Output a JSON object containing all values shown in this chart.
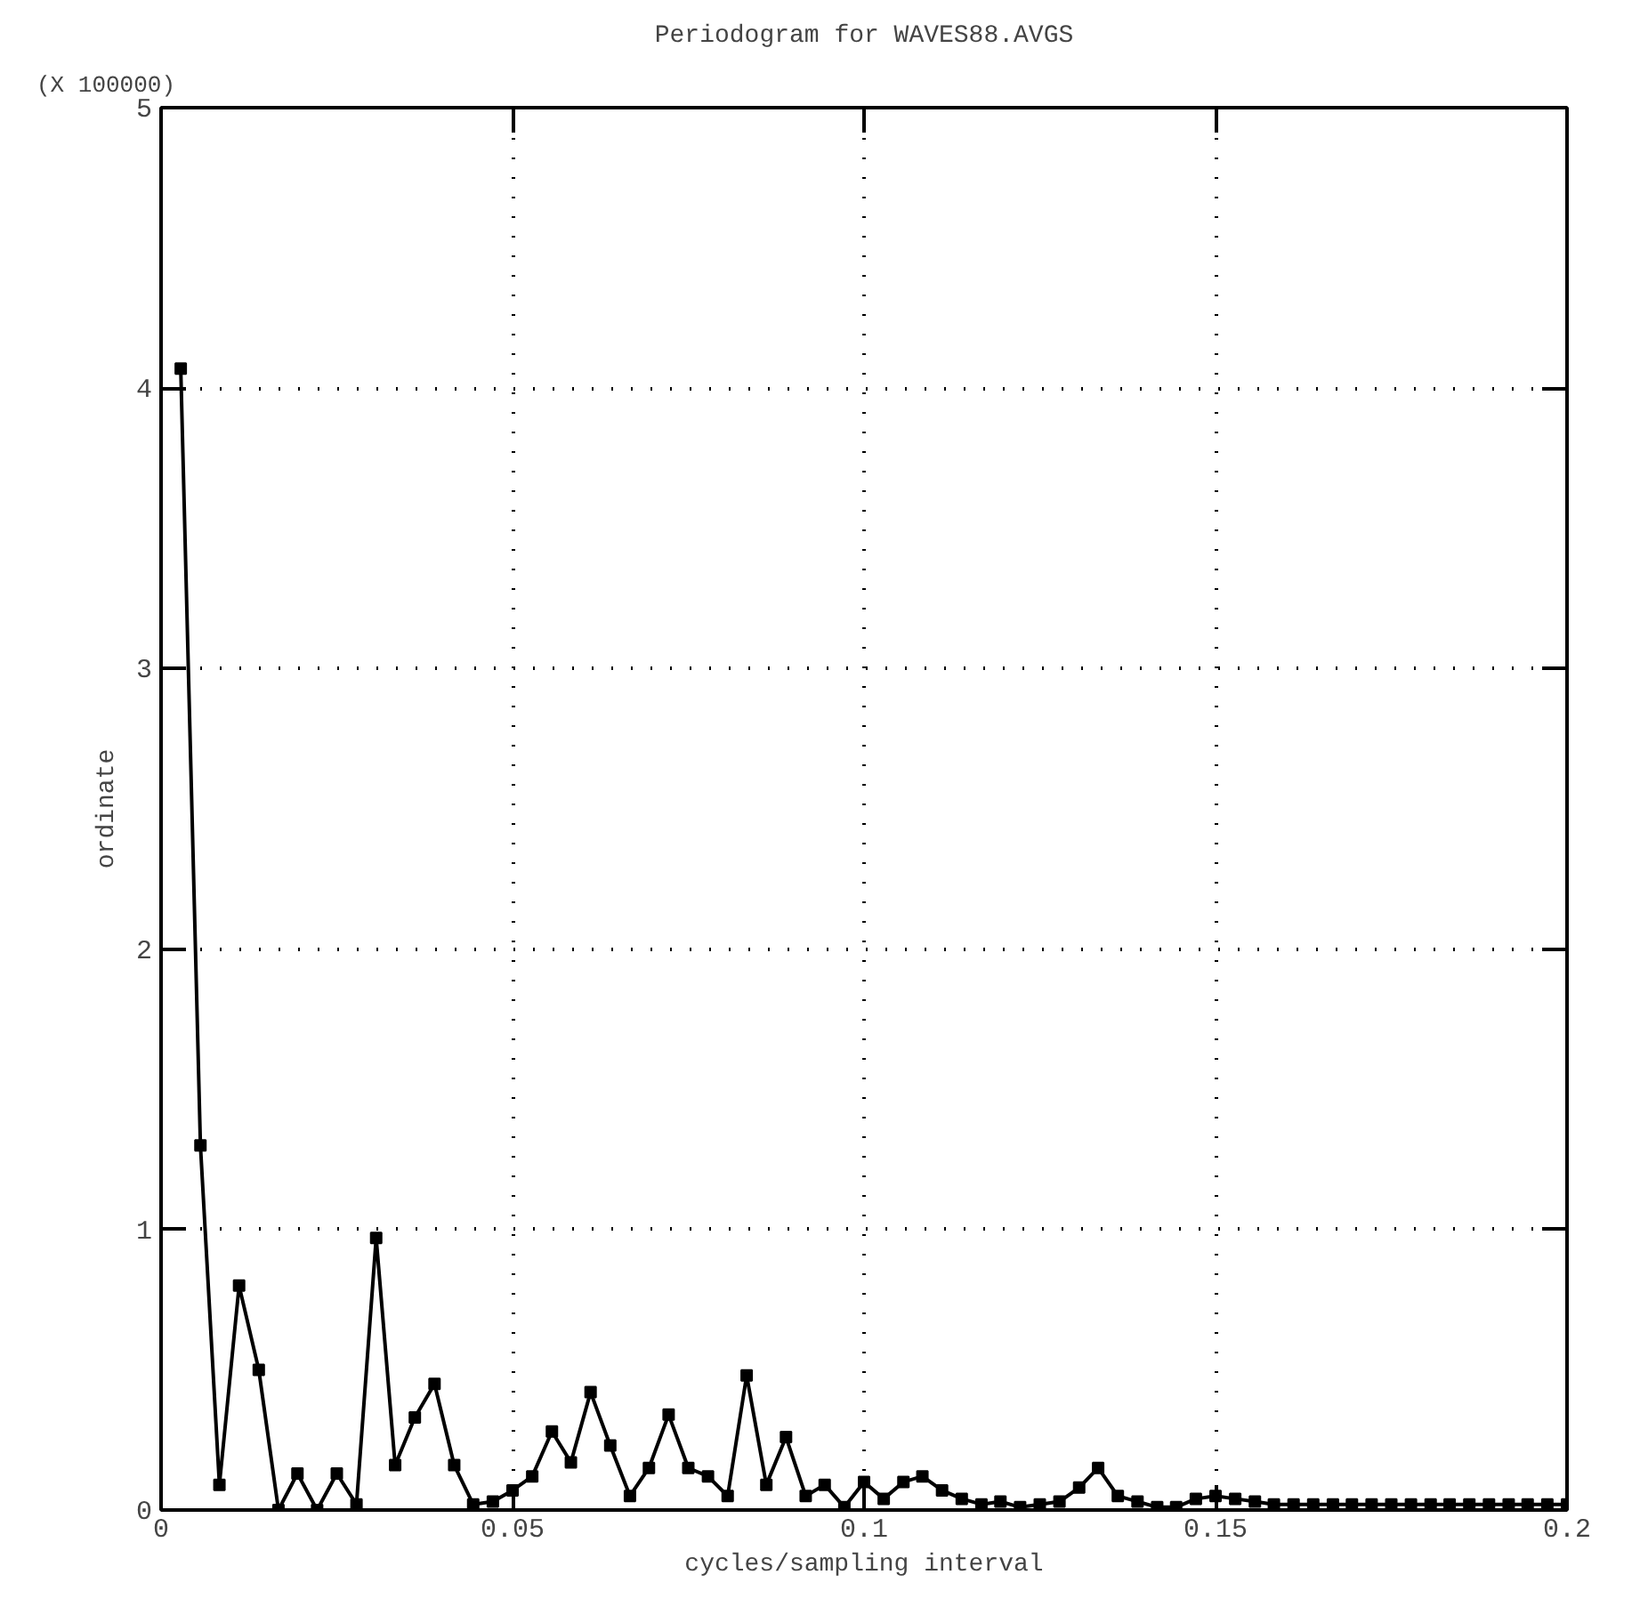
{
  "chart_data": {
    "type": "line",
    "title": "Periodogram for WAVES88.AVGS",
    "xlabel": "cycles/sampling interval",
    "ylabel": "ordinate",
    "annotations": [
      "(X 100000)"
    ],
    "x": [
      0.0028,
      0.0056,
      0.0083,
      0.0111,
      0.0139,
      0.0167,
      0.0194,
      0.0222,
      0.025,
      0.0278,
      0.0306,
      0.0333,
      0.0361,
      0.0389,
      0.0417,
      0.0444,
      0.0472,
      0.05,
      0.0528,
      0.0556,
      0.0583,
      0.0611,
      0.0639,
      0.0667,
      0.0694,
      0.0722,
      0.075,
      0.0778,
      0.0806,
      0.0833,
      0.0861,
      0.0889,
      0.0917,
      0.0944,
      0.0972,
      0.1,
      0.1028,
      0.1056,
      0.1083,
      0.1111,
      0.1139,
      0.1167,
      0.1194,
      0.1222,
      0.125,
      0.1278,
      0.1306,
      0.1333,
      0.1361,
      0.1389,
      0.1417,
      0.1444,
      0.1472,
      0.15,
      0.1528,
      0.1556,
      0.1583,
      0.1611,
      0.1639,
      0.1667,
      0.1694,
      0.1722,
      0.175,
      0.1778,
      0.1806,
      0.1833,
      0.1861,
      0.1889,
      0.1917,
      0.1944,
      0.1972,
      0.2
    ],
    "series": [
      {
        "color": "#000000",
        "values": [
          4.07,
          1.3,
          0.09,
          0.8,
          0.5,
          0.0,
          0.13,
          0.0,
          0.13,
          0.02,
          0.97,
          0.16,
          0.33,
          0.45,
          0.16,
          0.02,
          0.03,
          0.07,
          0.12,
          0.28,
          0.17,
          0.42,
          0.23,
          0.05,
          0.15,
          0.34,
          0.15,
          0.12,
          0.05,
          0.48,
          0.09,
          0.26,
          0.05,
          0.09,
          0.01,
          0.1,
          0.04,
          0.1,
          0.12,
          0.07,
          0.04,
          0.02,
          0.03,
          0.01,
          0.02,
          0.03,
          0.08,
          0.15,
          0.05,
          0.03,
          0.01,
          0.01,
          0.04,
          0.05,
          0.04,
          0.03,
          0.02,
          0.02,
          0.02,
          0.02,
          0.02,
          0.02,
          0.02,
          0.02,
          0.02,
          0.02,
          0.02,
          0.02,
          0.02,
          0.02,
          0.02,
          0.02
        ]
      }
    ],
    "xlim": [
      0,
      0.2
    ],
    "ylim": [
      0,
      5
    ],
    "xticks": [
      0,
      0.05,
      0.1,
      0.15,
      0.2
    ],
    "yticks": [
      0,
      1,
      2,
      3,
      4,
      5
    ],
    "grid": true,
    "marker": "square",
    "line_style": "solid"
  }
}
